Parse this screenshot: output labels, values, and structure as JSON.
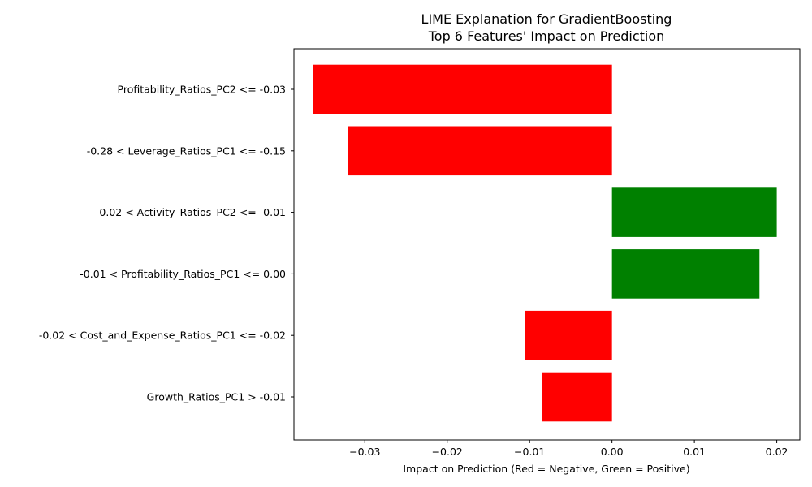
{
  "chart_data": {
    "type": "bar",
    "orientation": "horizontal",
    "title": [
      "LIME Explanation for GradientBoosting",
      "Top 6 Features' Impact on Prediction"
    ],
    "xlabel": "Impact on Prediction (Red = Negative, Green = Positive)",
    "ylabel": "",
    "xlim": [
      -0.0386,
      0.0228
    ],
    "xticks": [
      -0.03,
      -0.02,
      -0.01,
      0.0,
      0.01,
      0.02
    ],
    "xtick_labels": [
      "−0.03",
      "−0.02",
      "−0.01",
      "0.00",
      "0.01",
      "0.02"
    ],
    "categories": [
      "Profitability_Ratios_PC2 <= -0.03",
      "-0.28 < Leverage_Ratios_PC1 <= -0.15",
      "-0.02 < Activity_Ratios_PC2 <= -0.01",
      "-0.01 < Profitability_Ratios_PC1 <= 0.00",
      "-0.02 < Cost_and_Expense_Ratios_PC1 <= -0.02",
      "Growth_Ratios_PC1 > -0.01"
    ],
    "values": [
      -0.0363,
      -0.032,
      0.02,
      0.0179,
      -0.0106,
      -0.0085
    ],
    "colors": {
      "negative": "#ff0000",
      "positive": "#008000"
    },
    "grid": false,
    "legend": "none"
  }
}
